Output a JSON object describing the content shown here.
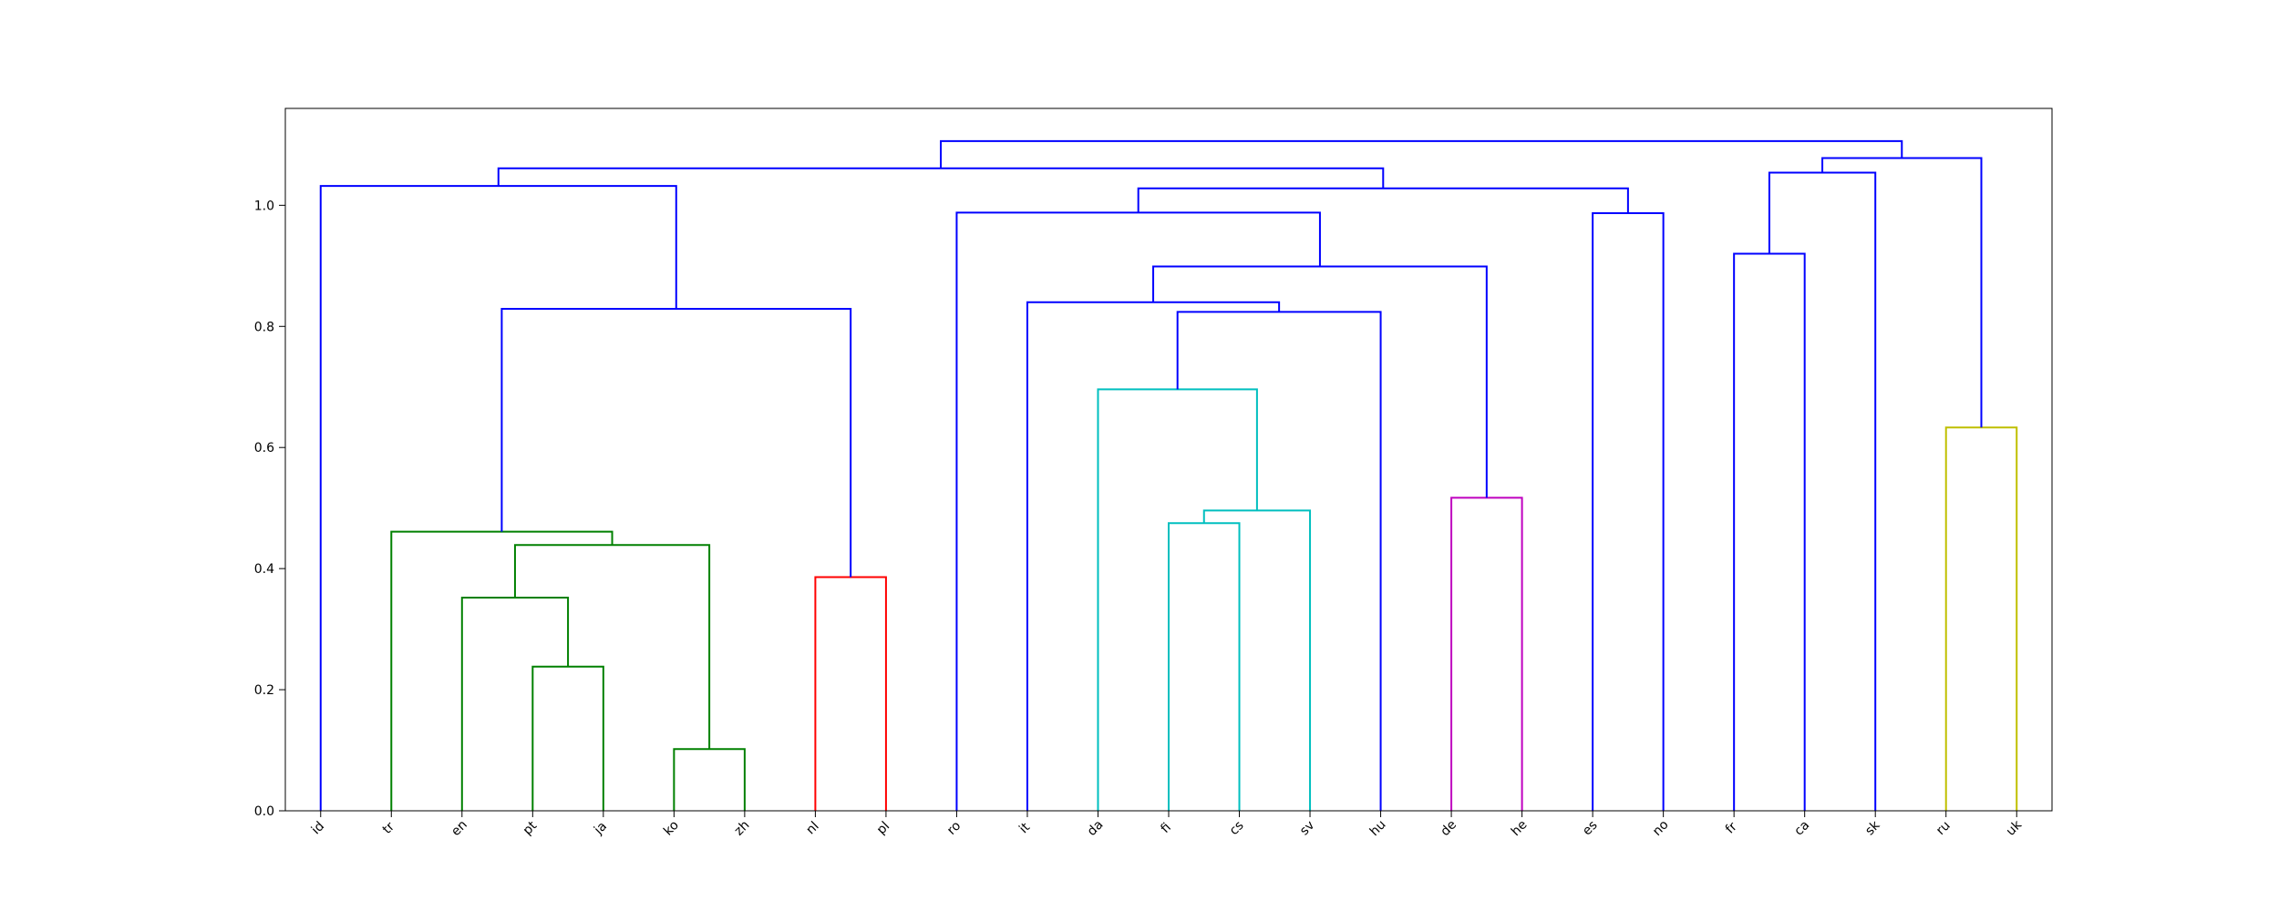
{
  "chart_data": {
    "type": "dendrogram",
    "title": "",
    "xlabel": "",
    "ylabel": "",
    "ylim": [
      0,
      1.16
    ],
    "yticks": [
      0.0,
      0.2,
      0.4,
      0.6,
      0.8,
      1.0
    ],
    "ytick_labels": [
      "0.0",
      "0.2",
      "0.4",
      "0.6",
      "0.8",
      "1.0"
    ],
    "grid": false,
    "leaves": [
      "id",
      "tr",
      "en",
      "pt",
      "ja",
      "ko",
      "zh",
      "nl",
      "pl",
      "ro",
      "it",
      "da",
      "fi",
      "cs",
      "sv",
      "hu",
      "de",
      "he",
      "es",
      "no",
      "fr",
      "ca",
      "sk",
      "ru",
      "uk"
    ],
    "colors": {
      "blue": "#0000ff",
      "green": "#008000",
      "red": "#ff0000",
      "cyan": "#00bfbf",
      "magenta": "#bf00bf",
      "olive": "#bfbf00"
    },
    "links": [
      {
        "id": "A",
        "left": "pt",
        "right": "ja",
        "height": 0.238,
        "color": "green"
      },
      {
        "id": "B",
        "left": "en",
        "right": "A",
        "height": 0.352,
        "color": "green"
      },
      {
        "id": "C",
        "left": "ko",
        "right": "zh",
        "height": 0.102,
        "color": "green"
      },
      {
        "id": "D",
        "left": "B",
        "right": "C",
        "height": 0.439,
        "color": "green"
      },
      {
        "id": "E",
        "left": "tr",
        "right": "D",
        "height": 0.461,
        "color": "green"
      },
      {
        "id": "F",
        "left": "nl",
        "right": "pl",
        "height": 0.386,
        "color": "red"
      },
      {
        "id": "G",
        "left": "E",
        "right": "F",
        "height": 0.829,
        "color": "blue"
      },
      {
        "id": "H",
        "left": "id",
        "right": "G",
        "height": 1.032,
        "color": "blue"
      },
      {
        "id": "I",
        "left": "fi",
        "right": "cs",
        "height": 0.475,
        "color": "cyan"
      },
      {
        "id": "J",
        "left": "I",
        "right": "sv",
        "height": 0.496,
        "color": "cyan"
      },
      {
        "id": "K",
        "left": "da",
        "right": "J",
        "height": 0.696,
        "color": "cyan"
      },
      {
        "id": "L",
        "left": "K",
        "right": "hu",
        "height": 0.824,
        "color": "blue"
      },
      {
        "id": "M",
        "left": "it",
        "right": "L",
        "height": 0.84,
        "color": "blue"
      },
      {
        "id": "N",
        "left": "de",
        "right": "he",
        "height": 0.517,
        "color": "magenta"
      },
      {
        "id": "O",
        "left": "M",
        "right": "N",
        "height": 0.899,
        "color": "blue"
      },
      {
        "id": "P",
        "left": "ro",
        "right": "O",
        "height": 0.988,
        "color": "blue"
      },
      {
        "id": "Q",
        "left": "es",
        "right": "no",
        "height": 0.987,
        "color": "blue"
      },
      {
        "id": "R",
        "left": "P",
        "right": "Q",
        "height": 1.028,
        "color": "blue"
      },
      {
        "id": "S",
        "left": "H",
        "right": "R",
        "height": 1.061,
        "color": "blue"
      },
      {
        "id": "T",
        "left": "fr",
        "right": "ca",
        "height": 0.92,
        "color": "blue"
      },
      {
        "id": "U",
        "left": "T",
        "right": "sk",
        "height": 1.054,
        "color": "blue"
      },
      {
        "id": "V",
        "left": "ru",
        "right": "uk",
        "height": 0.633,
        "color": "olive"
      },
      {
        "id": "W",
        "left": "U",
        "right": "V",
        "height": 1.078,
        "color": "blue"
      },
      {
        "id": "X",
        "left": "S",
        "right": "W",
        "height": 1.106,
        "color": "blue"
      }
    ]
  }
}
